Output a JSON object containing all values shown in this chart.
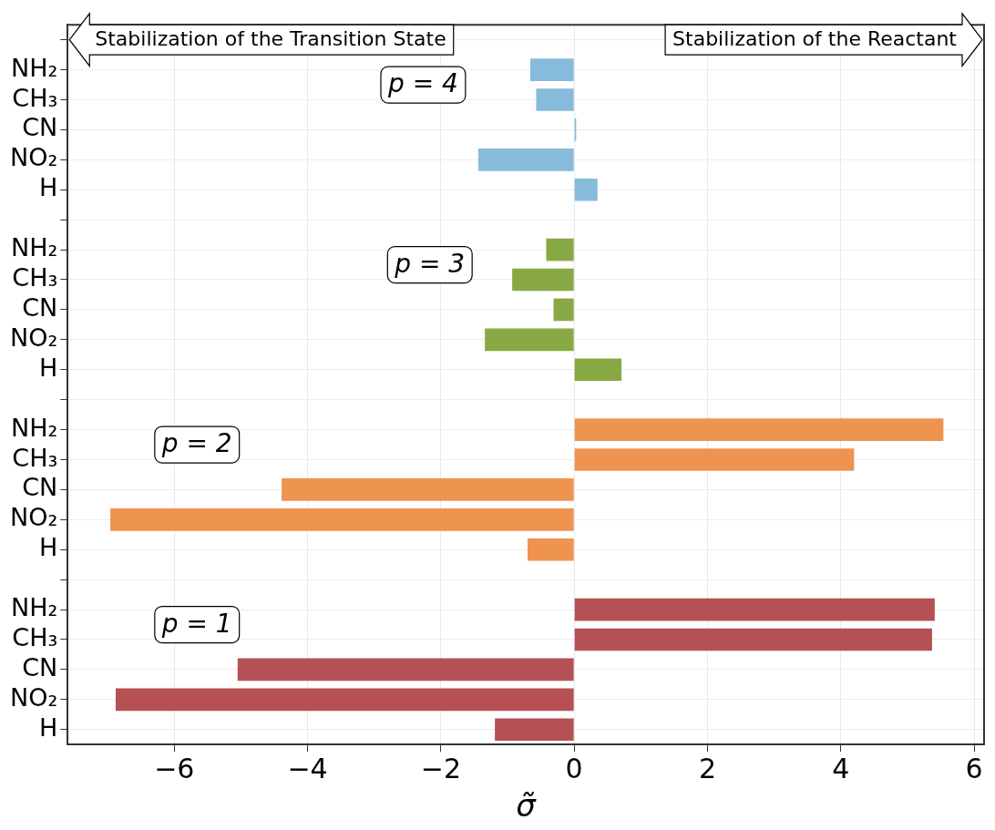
{
  "chart_data": {
    "type": "bar",
    "orientation": "horizontal",
    "xlabel": "σ̃",
    "categories": [
      null,
      "NH₂",
      "CH₃",
      "CN",
      "NO₂",
      "H",
      null,
      "NH₂",
      "CH₃",
      "CN",
      "NO₂",
      "H",
      null,
      "NH₂",
      "CH₃",
      "CN",
      "NO₂",
      "H",
      null,
      "NH₂",
      "CH₃",
      "CN",
      "NO₂",
      "H"
    ],
    "series": [
      {
        "name": "p = 4",
        "color": "#87bbdb",
        "values": [
          0,
          -0.66,
          -0.57,
          0.03,
          -1.44,
          0.35,
          null,
          null,
          null,
          null,
          null,
          null,
          null,
          null,
          null,
          null,
          null,
          null,
          null,
          null,
          null,
          null,
          null,
          null
        ]
      },
      {
        "name": "p = 3",
        "color": "#87a843",
        "values": [
          null,
          null,
          null,
          null,
          null,
          null,
          0,
          -0.42,
          -0.93,
          -0.31,
          -1.34,
          0.71,
          null,
          null,
          null,
          null,
          null,
          null,
          null,
          null,
          null,
          null,
          null,
          null
        ]
      },
      {
        "name": "p = 2",
        "color": "#ef9351",
        "values": [
          null,
          null,
          null,
          null,
          null,
          null,
          null,
          null,
          null,
          null,
          null,
          null,
          0,
          5.54,
          4.2,
          -4.39,
          -6.96,
          -0.7,
          null,
          null,
          null,
          null,
          null,
          null
        ]
      },
      {
        "name": "p = 1",
        "color": "#b55155",
        "values": [
          null,
          null,
          null,
          null,
          null,
          null,
          null,
          null,
          null,
          null,
          null,
          null,
          null,
          null,
          null,
          null,
          null,
          null,
          0,
          5.41,
          5.37,
          -5.05,
          -6.88,
          -1.19
        ]
      }
    ],
    "xlim": [
      -7.6,
      6.15
    ],
    "xticks": [
      {
        "value": -6,
        "label": "−6"
      },
      {
        "value": -4,
        "label": "−4"
      },
      {
        "value": -2,
        "label": "−2"
      },
      0,
      2,
      4,
      6
    ],
    "annotations": [
      "Stabilization of the Transition State",
      "Stabilization of the Reactant"
    ],
    "grid": true,
    "legend": false
  }
}
